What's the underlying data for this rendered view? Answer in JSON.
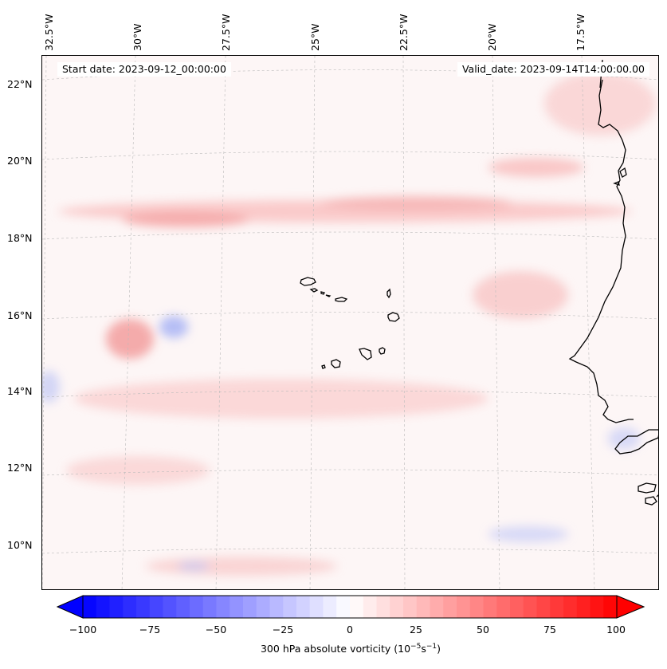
{
  "map": {
    "start_date_label": "Start date: 2023-09-12_00:00:00",
    "valid_date_label": "Valid_date: 2023-09-14T14:00:00.00",
    "longitude_labels": [
      "32.5°W",
      "30°W",
      "27.5°W",
      "25°W",
      "22.5°W",
      "20°W",
      "17.5°W"
    ],
    "latitude_labels": [
      "22°N",
      "20°N",
      "18°N",
      "16°N",
      "14°N",
      "12°N",
      "10°N"
    ],
    "field": "300 hPa absolute vorticity",
    "features": [
      "Cape Verde islands",
      "West African coastline (Senegal, Gambia, Guinea-Bissau)"
    ]
  },
  "colorbar": {
    "ticks": [
      "−100",
      "−75",
      "−50",
      "−25",
      "0",
      "25",
      "50",
      "75",
      "100"
    ],
    "label_main": "300 hPa absolute vorticity (10",
    "label_exp1": "−5",
    "label_mid": "s",
    "label_exp2": "−1",
    "label_end": ")",
    "min": -100,
    "max": 100,
    "colors": {
      "low": "#0000ff",
      "mid": "#ffffff",
      "high": "#ff0000"
    }
  }
}
